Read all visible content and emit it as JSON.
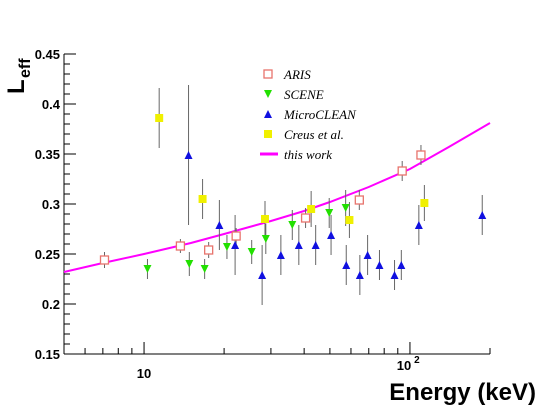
{
  "chart_data": {
    "type": "scatter",
    "title": "",
    "xlabel": "Energy (keV)",
    "ylabel_main": "L",
    "ylabel_sub": "eff",
    "xscale": "log",
    "xlim": [
      5,
      200
    ],
    "ylim": [
      0.15,
      0.45
    ],
    "x_major_ticks": [
      {
        "value": 10,
        "label": "10"
      }
    ],
    "x_major_tick_10e2": {
      "value": 100,
      "base": "10",
      "exp": "2"
    },
    "y_ticks": [
      {
        "value": 0.15,
        "label": "0.15"
      },
      {
        "value": 0.2,
        "label": "0.2"
      },
      {
        "value": 0.25,
        "label": "0.25"
      },
      {
        "value": 0.3,
        "label": "0.3"
      },
      {
        "value": 0.35,
        "label": "0.35"
      },
      {
        "value": 0.4,
        "label": "0.4"
      },
      {
        "value": 0.45,
        "label": "0.45"
      }
    ],
    "grid": false,
    "legend_position": "top-center",
    "series": [
      {
        "name": "ARIS",
        "marker": "open-square",
        "color": "#e8736c",
        "points": [
          {
            "x": 7.1,
            "y": 0.244,
            "err": 0.008
          },
          {
            "x": 13.7,
            "y": 0.258,
            "err": 0.007
          },
          {
            "x": 17.5,
            "y": 0.254,
            "err": 0.008
          },
          {
            "x": 22.2,
            "y": 0.268,
            "err": 0.008
          },
          {
            "x": 40.5,
            "y": 0.286,
            "err": 0.01
          },
          {
            "x": 64.5,
            "y": 0.304,
            "err": 0.01
          },
          {
            "x": 93.5,
            "y": 0.333,
            "err": 0.01
          },
          {
            "x": 110.0,
            "y": 0.349,
            "err": 0.01
          }
        ]
      },
      {
        "name": "SCENE",
        "marker": "triangle-down",
        "color": "#22e000",
        "points": [
          {
            "x": 10.3,
            "y": 0.235,
            "err": 0.01
          },
          {
            "x": 14.8,
            "y": 0.24,
            "err": 0.012
          },
          {
            "x": 16.9,
            "y": 0.235,
            "err": 0.01
          },
          {
            "x": 20.5,
            "y": 0.257,
            "err": 0.012
          },
          {
            "x": 25.4,
            "y": 0.252,
            "err": 0.012
          },
          {
            "x": 28.7,
            "y": 0.265,
            "err": 0.015
          },
          {
            "x": 36.1,
            "y": 0.279,
            "err": 0.015
          },
          {
            "x": 49.7,
            "y": 0.291,
            "err": 0.015
          },
          {
            "x": 57.3,
            "y": 0.296,
            "err": 0.018
          }
        ]
      },
      {
        "name": "MicroCLEAN",
        "marker": "triangle-up",
        "color": "#1010e0",
        "points": [
          {
            "x": 14.7,
            "y": 0.349,
            "err": 0.07
          },
          {
            "x": 19.2,
            "y": 0.279,
            "err": 0.025
          },
          {
            "x": 22.0,
            "y": 0.259,
            "err": 0.03
          },
          {
            "x": 27.8,
            "y": 0.229,
            "err": 0.03
          },
          {
            "x": 32.7,
            "y": 0.249,
            "err": 0.02
          },
          {
            "x": 38.2,
            "y": 0.259,
            "err": 0.02
          },
          {
            "x": 44.2,
            "y": 0.259,
            "err": 0.02
          },
          {
            "x": 50.5,
            "y": 0.269,
            "err": 0.02
          },
          {
            "x": 57.6,
            "y": 0.239,
            "err": 0.02
          },
          {
            "x": 64.8,
            "y": 0.229,
            "err": 0.02
          },
          {
            "x": 69.3,
            "y": 0.249,
            "err": 0.02
          },
          {
            "x": 76.8,
            "y": 0.239,
            "err": 0.015
          },
          {
            "x": 87.5,
            "y": 0.229,
            "err": 0.015
          },
          {
            "x": 92.8,
            "y": 0.239,
            "err": 0.015
          },
          {
            "x": 108.0,
            "y": 0.279,
            "err": 0.02
          },
          {
            "x": 187.0,
            "y": 0.289,
            "err": 0.02
          }
        ]
      },
      {
        "name": "Creus et al.",
        "marker": "filled-square",
        "color": "#f0f000",
        "points": [
          {
            "x": 11.4,
            "y": 0.386,
            "err": 0.03
          },
          {
            "x": 16.6,
            "y": 0.305,
            "err": 0.02
          },
          {
            "x": 28.5,
            "y": 0.285,
            "err": 0.018
          },
          {
            "x": 42.5,
            "y": 0.295,
            "err": 0.018
          },
          {
            "x": 59.2,
            "y": 0.284,
            "err": 0.018
          },
          {
            "x": 113.3,
            "y": 0.301,
            "err": 0.018
          }
        ]
      }
    ],
    "curve": {
      "name": "this work",
      "color": "#ff00ff",
      "points": [
        {
          "x": 5,
          "y": 0.232
        },
        {
          "x": 7,
          "y": 0.241
        },
        {
          "x": 10,
          "y": 0.25
        },
        {
          "x": 15,
          "y": 0.261
        },
        {
          "x": 20,
          "y": 0.27
        },
        {
          "x": 30,
          "y": 0.283
        },
        {
          "x": 40,
          "y": 0.293
        },
        {
          "x": 50,
          "y": 0.302
        },
        {
          "x": 70,
          "y": 0.317
        },
        {
          "x": 100,
          "y": 0.335
        },
        {
          "x": 140,
          "y": 0.357
        },
        {
          "x": 200,
          "y": 0.381
        }
      ]
    }
  }
}
